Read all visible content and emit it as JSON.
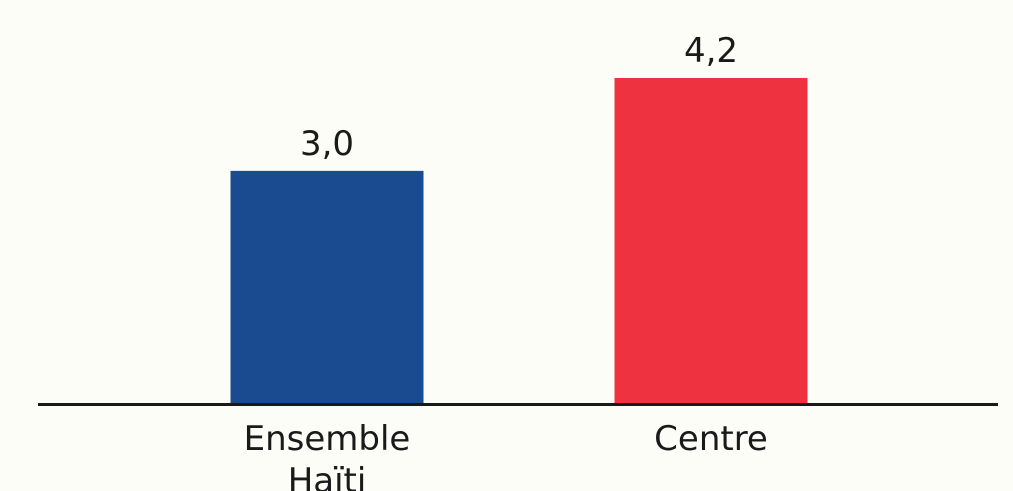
{
  "chart_data": {
    "type": "bar",
    "categories": [
      [
        "Ensemble",
        "Haïti"
      ],
      [
        "Centre"
      ]
    ],
    "values": [
      3.0,
      4.2
    ],
    "value_labels": [
      "3,0",
      "4,2"
    ],
    "colors": [
      "#1a4a90",
      "#ee3240"
    ],
    "axis_color": "#1a1a1a",
    "title": "",
    "xlabel": "",
    "ylabel": "",
    "ylim": [
      0,
      4.5
    ],
    "grid": false,
    "legend": "none"
  }
}
